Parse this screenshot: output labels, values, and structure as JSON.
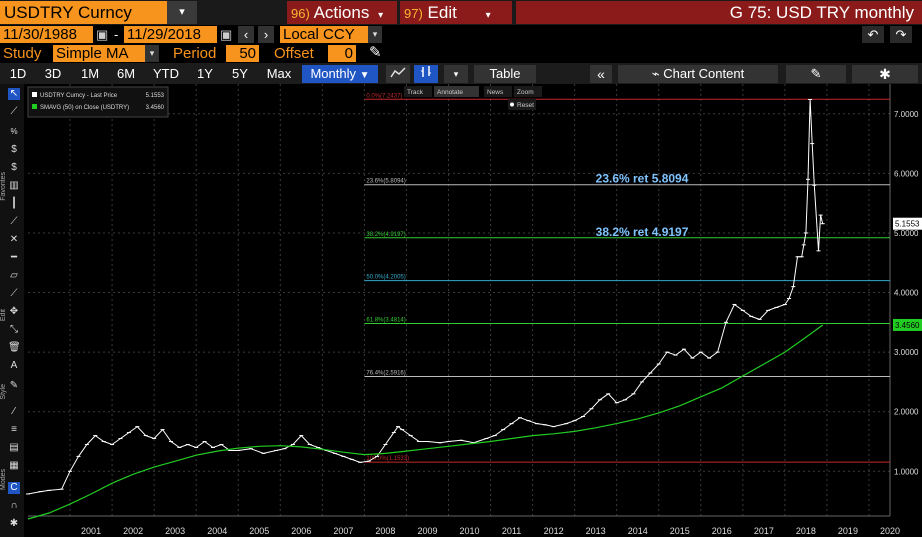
{
  "header": {
    "ticker": "USDTRY Curncy",
    "actions_num": "96)",
    "actions_label": "Actions",
    "edit_num": "97)",
    "edit_label": "Edit",
    "title": "G 75: USD TRY monthly"
  },
  "range": {
    "start": "11/30/1988",
    "separator": "-",
    "end": "11/29/2018",
    "currency": "Local CCY"
  },
  "study": {
    "label": "Study",
    "value": "Simple MA",
    "period_label": "Period",
    "period_value": "50",
    "offset_label": "Offset",
    "offset_value": "0"
  },
  "toolbar": {
    "periods": [
      "1D",
      "3D",
      "1M",
      "6M",
      "YTD",
      "1Y",
      "5Y",
      "Max"
    ],
    "frequency": "Monthly",
    "table_label": "Table",
    "chart_content_label": "Chart Content"
  },
  "sidebar": {
    "labels": [
      "Favorites",
      "Edit",
      "Style",
      "Modes"
    ]
  },
  "chart_data": {
    "type": "line",
    "x_ticks": [
      "2001",
      "2002",
      "2003",
      "2004",
      "2005",
      "2006",
      "2007",
      "2008",
      "2009",
      "2010",
      "2011",
      "2012",
      "2013",
      "2014",
      "2015",
      "2016",
      "2017",
      "2018",
      "2019",
      "2020"
    ],
    "y_ticks": [
      "1.0000",
      "2.0000",
      "3.0000",
      "4.0000",
      "5.0000",
      "6.0000",
      "7.0000"
    ],
    "ylim": [
      0.25,
      7.5
    ],
    "legend": [
      {
        "name": "USDTRY Curncy - Last Price",
        "value": "5.1553",
        "color": "#ffffff"
      },
      {
        "name": "SMAVG (50)  on Close (USDTRY)",
        "value": "3.4560",
        "color": "#22cc22"
      }
    ],
    "last_price_label": "5.1553",
    "sma_label": "3.4560",
    "fib_levels": [
      {
        "label": "0.0%(7.2437)",
        "value": 7.2437,
        "color": "#c0282d"
      },
      {
        "label": "23.6%(5.8094)",
        "value": 5.8094,
        "color": "#bbbbbb"
      },
      {
        "label": "38.2%(4.9197)",
        "value": 4.9197,
        "color": "#33cc33"
      },
      {
        "label": "50.0%(4.2005)",
        "value": 4.2005,
        "color": "#33aacc"
      },
      {
        "label": "61.8%(3.4814)",
        "value": 3.4814,
        "color": "#33cc33"
      },
      {
        "label": "76.4%(2.5916)",
        "value": 2.5916,
        "color": "#bbbbbb"
      },
      {
        "label": "100.0%(1.1533)",
        "value": 1.1533,
        "color": "#c0282d"
      }
    ],
    "annotations": [
      {
        "text": "23.6% ret 5.8094",
        "value": 5.8094
      },
      {
        "text": "38.2% ret 4.9197",
        "value": 4.9197
      }
    ],
    "chart_tools": [
      "Track",
      "Annotate",
      "News",
      "Zoom",
      "Reset"
    ],
    "series": [
      {
        "name": "USDTRY Curncy - Last Price",
        "color": "#ffffff",
        "x": [
          2000.0,
          2000.3,
          2000.5,
          2000.8,
          2001.0,
          2001.2,
          2001.4,
          2001.6,
          2001.8,
          2002.0,
          2002.2,
          2002.4,
          2002.6,
          2002.8,
          2003.0,
          2003.2,
          2003.4,
          2003.6,
          2003.8,
          2004.0,
          2004.2,
          2004.4,
          2004.6,
          2004.8,
          2005.0,
          2005.3,
          2005.6,
          2005.9,
          2006.1,
          2006.3,
          2006.5,
          2006.7,
          2006.9,
          2007.1,
          2007.3,
          2007.5,
          2007.7,
          2007.9,
          2008.1,
          2008.3,
          2008.5,
          2008.7,
          2008.8,
          2008.9,
          2009.1,
          2009.3,
          2009.5,
          2009.8,
          2010.0,
          2010.3,
          2010.6,
          2010.9,
          2011.1,
          2011.3,
          2011.5,
          2011.7,
          2011.9,
          2012.1,
          2012.3,
          2012.5,
          2012.8,
          2013.0,
          2013.2,
          2013.4,
          2013.6,
          2013.8,
          2014.0,
          2014.2,
          2014.4,
          2014.6,
          2014.8,
          2015.0,
          2015.2,
          2015.4,
          2015.6,
          2015.8,
          2016.0,
          2016.2,
          2016.4,
          2016.6,
          2016.8,
          2017.0,
          2017.2,
          2017.4,
          2017.6,
          2017.8,
          2018.0,
          2018.1,
          2018.2,
          2018.3,
          2018.4,
          2018.45,
          2018.5,
          2018.55,
          2018.6,
          2018.65,
          2018.7,
          2018.8,
          2018.85,
          2018.9
        ],
        "y": [
          0.62,
          0.66,
          0.68,
          0.7,
          1.0,
          1.25,
          1.45,
          1.6,
          1.5,
          1.45,
          1.55,
          1.65,
          1.75,
          1.6,
          1.55,
          1.7,
          1.5,
          1.4,
          1.45,
          1.4,
          1.5,
          1.4,
          1.45,
          1.35,
          1.35,
          1.38,
          1.3,
          1.35,
          1.38,
          1.45,
          1.6,
          1.45,
          1.4,
          1.35,
          1.3,
          1.25,
          1.2,
          1.15,
          1.17,
          1.25,
          1.45,
          1.65,
          1.75,
          1.7,
          1.6,
          1.5,
          1.5,
          1.48,
          1.5,
          1.52,
          1.48,
          1.55,
          1.6,
          1.7,
          1.8,
          1.9,
          1.85,
          1.8,
          1.78,
          1.75,
          1.8,
          1.85,
          1.92,
          2.05,
          2.2,
          2.3,
          2.15,
          2.2,
          2.3,
          2.5,
          2.65,
          2.8,
          3.0,
          2.95,
          3.05,
          2.9,
          3.0,
          2.9,
          3.0,
          3.5,
          3.8,
          3.7,
          3.6,
          3.55,
          3.7,
          3.75,
          3.8,
          3.9,
          4.1,
          4.6,
          4.6,
          4.8,
          5.0,
          5.9,
          7.24,
          6.5,
          5.8,
          4.7,
          5.3,
          5.1553
        ]
      },
      {
        "name": "SMAVG (50)  on Close (USDTRY)",
        "color": "#22cc22",
        "x": [
          2000.0,
          2000.5,
          2001.0,
          2001.5,
          2002.0,
          2002.5,
          2003.0,
          2003.5,
          2004.0,
          2004.5,
          2005.0,
          2005.5,
          2006.0,
          2006.5,
          2007.0,
          2007.5,
          2008.0,
          2008.5,
          2009.0,
          2009.5,
          2010.0,
          2010.5,
          2011.0,
          2011.5,
          2012.0,
          2012.5,
          2013.0,
          2013.5,
          2014.0,
          2014.5,
          2015.0,
          2015.5,
          2016.0,
          2016.5,
          2017.0,
          2017.5,
          2018.0,
          2018.3,
          2018.6,
          2018.9
        ],
        "y": [
          0.2,
          0.3,
          0.45,
          0.62,
          0.8,
          0.95,
          1.07,
          1.17,
          1.27,
          1.34,
          1.39,
          1.42,
          1.43,
          1.41,
          1.37,
          1.32,
          1.28,
          1.3,
          1.34,
          1.38,
          1.42,
          1.46,
          1.5,
          1.55,
          1.6,
          1.63,
          1.67,
          1.73,
          1.8,
          1.88,
          1.98,
          2.1,
          2.25,
          2.4,
          2.6,
          2.8,
          3.0,
          3.15,
          3.3,
          3.456
        ]
      }
    ]
  }
}
